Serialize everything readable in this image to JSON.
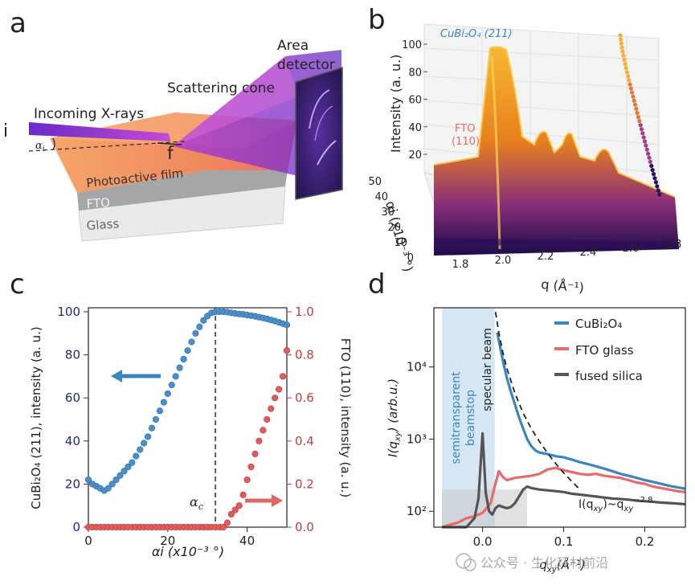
{
  "panels": {
    "a": {
      "letter": "a",
      "labels": {
        "incoming": "Incoming X-rays",
        "scattering": "Scattering cone",
        "detector_1": "Area",
        "detector_2": "detector",
        "film": "Photoactive film",
        "fto": "FTO",
        "glass": "Glass",
        "i": "i",
        "f": "f",
        "alpha": "α",
        "alpha_sub": "i"
      }
    },
    "b": {
      "letter": "b",
      "cubi_label": "CuBi₂O₄ (211)",
      "fto_label_1": "FTO",
      "fto_label_2": "(110)"
    },
    "c": {
      "letter": "c",
      "arrow_blue": "#3a86c0",
      "arrow_red": "#e06464"
    },
    "d": {
      "letter": "d"
    }
  },
  "watermark": "公众号 · 生化环材前沿",
  "colors": {
    "navy": "#1f2a7a",
    "blue_dot": "#4a8fc9",
    "red_dot": "#e05b5b",
    "red_axis": "#c43b3b",
    "cubi": "#3a86c0",
    "fto": "#e86a6a",
    "silica": "#555555",
    "beamstop": "#cfe3f1"
  },
  "chart_data": [
    {
      "id": "b",
      "type": "area",
      "title": "",
      "xlabel": "q (Å⁻¹)",
      "ylabel": "Intensity (a. u.)",
      "zlabel": "αi (x10⁻³ °)",
      "xticks": [
        "1.8",
        "2.0",
        "2.2",
        "2.4",
        "2.6",
        "2.8"
      ],
      "yticks": [
        "20",
        "40",
        "60",
        "80",
        "100"
      ],
      "zticks": [
        "0",
        "10",
        "20",
        "30",
        "40",
        "50"
      ],
      "annotations": [
        "CuBi₂O₄ (211)",
        "FTO (110)"
      ],
      "peaks_q": [
        1.73,
        2.08,
        2.33,
        2.62
      ]
    },
    {
      "id": "c",
      "type": "scatter",
      "xlabel": "αi (x10⁻³ °)",
      "ylabel_left": "CuBi₂O₄ (211), intensity (a. u.)",
      "ylabel_right": "FTO (110), intensity (a. u.)",
      "xlim": [
        0,
        50
      ],
      "ylim_left": [
        0,
        100
      ],
      "ylim_right": [
        0,
        1.0
      ],
      "xticks": [
        0,
        20,
        40
      ],
      "yticks_left": [
        0,
        20,
        40,
        60,
        80,
        100
      ],
      "yticks_right": [
        "0.0",
        "0.2",
        "0.4",
        "0.6",
        "0.8",
        "1.0"
      ],
      "critical_angle_label": "α",
      "critical_angle_sub": "c",
      "critical_angle": 32,
      "series": [
        {
          "name": "CuBi2O4 (211)",
          "axis": "left",
          "x": [
            0,
            1,
            2,
            3,
            4,
            5,
            6,
            7,
            8,
            9,
            10,
            11,
            12,
            13,
            14,
            15,
            16,
            17,
            18,
            19,
            20,
            21,
            22,
            23,
            24,
            25,
            26,
            27,
            28,
            29,
            30,
            31,
            32,
            33,
            34,
            35,
            36,
            37,
            38,
            39,
            40,
            41,
            42,
            43,
            44,
            45,
            46,
            47,
            48,
            49,
            50
          ],
          "y": [
            22,
            20,
            19,
            18,
            17,
            18,
            20,
            22,
            24,
            26,
            28,
            30,
            33,
            36,
            39,
            42,
            46,
            50,
            54,
            58,
            62,
            66,
            70,
            74,
            78,
            82,
            86,
            90,
            93,
            96,
            98,
            99.5,
            100,
            100,
            100,
            99.8,
            99.5,
            99.2,
            99,
            98.8,
            98.5,
            98.2,
            97.9,
            97.5,
            97.1,
            96.7,
            96.2,
            95.7,
            95.1,
            94.5,
            93.9
          ]
        },
        {
          "name": "FTO (110)",
          "axis": "right",
          "x": [
            0,
            1,
            2,
            3,
            4,
            5,
            6,
            7,
            8,
            9,
            10,
            11,
            12,
            13,
            14,
            15,
            16,
            17,
            18,
            19,
            20,
            21,
            22,
            23,
            24,
            25,
            26,
            27,
            28,
            29,
            30,
            31,
            32,
            33,
            34,
            35,
            36,
            37,
            38,
            39,
            40,
            41,
            42,
            43,
            44,
            45,
            46,
            47,
            48,
            49,
            50
          ],
          "y": [
            0,
            0,
            0,
            0,
            0,
            0,
            0,
            0,
            0,
            0,
            0,
            0,
            0,
            0,
            0,
            0,
            0,
            0,
            0,
            0,
            0,
            0,
            0,
            0,
            0,
            0,
            0,
            0,
            0,
            0,
            0,
            0,
            0,
            0,
            0,
            0.02,
            0.06,
            0.08,
            0.1,
            0.15,
            0.22,
            0.28,
            0.34,
            0.4,
            0.45,
            0.5,
            0.55,
            0.6,
            0.64,
            0.7,
            0.82
          ]
        }
      ]
    },
    {
      "id": "d",
      "type": "line",
      "xlabel": "q",
      "xlabel_sub": "xy",
      "xlabel_unit": "(Å⁻¹)",
      "ylabel": "I(q",
      "ylabel_sub": "xy",
      "ylabel_unit": ") (arb.u.)",
      "xlim": [
        -0.06,
        0.25
      ],
      "ylim_log10": [
        1.78,
        4.82
      ],
      "xticks": [
        "0.0",
        "0.1",
        "0.2"
      ],
      "xtick_values": [
        0.0,
        0.1,
        0.2
      ],
      "yticks": [
        "10²",
        "10³",
        "10⁴"
      ],
      "ytick_values": [
        2,
        3,
        4
      ],
      "beamstop_label_1": "semitransparent",
      "beamstop_label_2": "beamstop",
      "specular_label": "specular beam",
      "fit_label": "I(q",
      "fit_label_sub": "xy",
      "fit_label_mid": ")~q",
      "fit_label_sub2": "xy",
      "fit_label_sup": "−2.8",
      "legend": [
        "CuBi₂O₄",
        "FTO glass",
        "fused silica"
      ],
      "series": [
        {
          "name": "CuBi2O4",
          "x": [
            0.018,
            0.022,
            0.026,
            0.03,
            0.035,
            0.04,
            0.045,
            0.05,
            0.055,
            0.06,
            0.065,
            0.07,
            0.08,
            0.09,
            0.1,
            0.11,
            0.12,
            0.13,
            0.14,
            0.15,
            0.16,
            0.17,
            0.18,
            0.19,
            0.2,
            0.21,
            0.22,
            0.23,
            0.24,
            0.25
          ],
          "y": [
            30000,
            18000,
            11000,
            7000,
            4500,
            3000,
            2000,
            1400,
            1000,
            800,
            700,
            650,
            620,
            580,
            560,
            520,
            480,
            450,
            420,
            390,
            360,
            330,
            310,
            290,
            270,
            255,
            240,
            225,
            215,
            205
          ]
        },
        {
          "name": "FTO glass",
          "x": [
            -0.05,
            -0.04,
            -0.03,
            -0.02,
            -0.01,
            0.0,
            0.005,
            0.01,
            0.015,
            0.02,
            0.025,
            0.03,
            0.04,
            0.05,
            0.06,
            0.07,
            0.08,
            0.09,
            0.1,
            0.11,
            0.12,
            0.13,
            0.14,
            0.15,
            0.16,
            0.17,
            0.18,
            0.19,
            0.2,
            0.21,
            0.22,
            0.23,
            0.24,
            0.25
          ],
          "y": [
            60,
            65,
            70,
            80,
            85,
            95,
            110,
            130,
            220,
            360,
            300,
            270,
            290,
            300,
            310,
            330,
            380,
            400,
            370,
            350,
            330,
            320,
            330,
            310,
            300,
            290,
            270,
            250,
            240,
            220,
            210,
            200,
            190,
            185
          ]
        },
        {
          "name": "fused silica",
          "x": [
            -0.05,
            -0.04,
            -0.03,
            -0.02,
            -0.01,
            -0.005,
            0.0,
            0.004,
            0.008,
            0.012,
            0.016,
            0.02,
            0.025,
            0.03,
            0.035,
            0.04,
            0.045,
            0.05,
            0.055,
            0.06,
            0.07,
            0.08,
            0.09,
            0.1,
            0.11,
            0.12,
            0.13,
            0.14,
            0.15,
            0.16,
            0.17,
            0.18,
            0.19,
            0.2,
            0.21,
            0.22,
            0.23,
            0.24,
            0.25
          ],
          "y": [
            50,
            48,
            55,
            60,
            80,
            150,
            1200,
            180,
            100,
            90,
            110,
            120,
            115,
            110,
            115,
            130,
            160,
            200,
            220,
            210,
            200,
            195,
            190,
            185,
            175,
            170,
            165,
            160,
            155,
            150,
            148,
            145,
            140,
            138,
            135,
            132,
            130,
            128,
            125
          ]
        },
        {
          "name": "power-law fit",
          "style": "dashed",
          "x": [
            0.016,
            0.02,
            0.025,
            0.03,
            0.04,
            0.05,
            0.06,
            0.07,
            0.08,
            0.09,
            0.1,
            0.11,
            0.12
          ],
          "y": [
            58000,
            30000,
            16000,
            9500,
            4300,
            2300,
            1400,
            930,
            640,
            460,
            340,
            260,
            200
          ]
        }
      ]
    }
  ]
}
